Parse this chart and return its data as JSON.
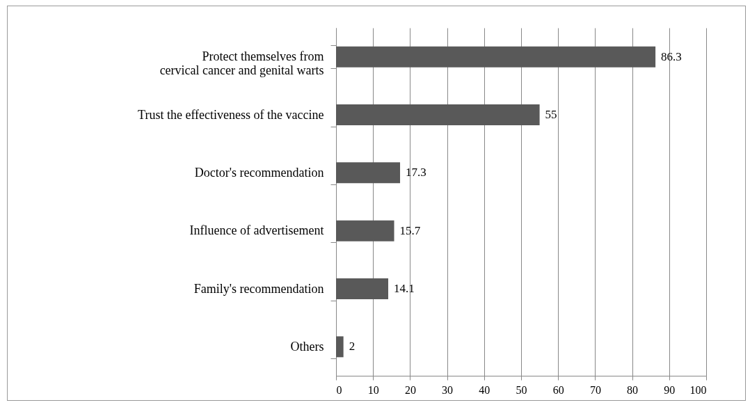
{
  "chart_data": {
    "type": "bar",
    "orientation": "horizontal",
    "categories": [
      "Protect themselves from\ncervical cancer and genital warts",
      "Trust the effectiveness of the vaccine",
      "Doctor's recommendation",
      "Influence of advertisement",
      "Family's recommendation",
      "Others"
    ],
    "values": [
      86.3,
      55,
      17.3,
      15.7,
      14.1,
      2
    ],
    "color": "#595959",
    "xlim": [
      0,
      100
    ],
    "xticks": [
      0,
      10,
      20,
      30,
      40,
      50,
      60,
      70,
      80,
      90,
      100
    ],
    "grid": "x",
    "data_labels": true
  }
}
